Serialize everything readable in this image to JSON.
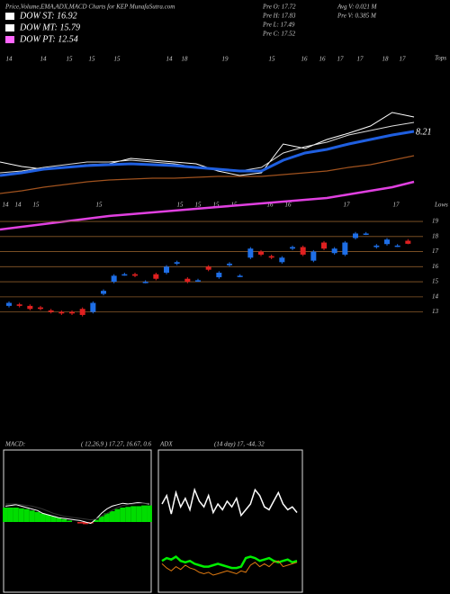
{
  "header": {
    "title": "Price,Volume,EMA,ADX,MACD Charts for KEP MunafaSutra.com",
    "legend": [
      {
        "label": "DOW ST: 16.92",
        "color": "#ffffff"
      },
      {
        "label": "DOW MT: 15.79",
        "color": "#ffffff"
      },
      {
        "label": "DOW PT: 12.54",
        "color": "#ff66ff"
      }
    ],
    "info": [
      "Pre   O: 17.72",
      "Pre   H: 17.83",
      "Pre   L: 17.49",
      "Pre   C: 17.52"
    ],
    "info2": [
      "Avg V: 0.021 M",
      "Pre   V: 0.385 M"
    ]
  },
  "dates": {
    "top": [
      "14",
      "14",
      "15",
      "15",
      "15",
      "14",
      "18",
      "19",
      "15",
      "16",
      "16",
      "17",
      "17",
      "18",
      "17"
    ],
    "middle": [
      "14",
      "14",
      "15",
      "15",
      "15",
      "15",
      "15",
      "15",
      "16",
      "16",
      "17",
      "17"
    ]
  },
  "labels": {
    "tops": "Tops",
    "lows": "Lows"
  },
  "chart_data": [
    {
      "type": "line",
      "ylim": [
        0,
        100
      ],
      "annotation": "8.21",
      "series": [
        {
          "color": "#ffffff",
          "values": [
            40,
            37.5,
            36,
            37,
            38.5,
            39,
            42,
            41,
            40,
            39,
            35,
            32.5,
            34,
            50,
            47.5,
            52.5,
            56,
            60,
            67.5,
            65
          ]
        },
        {
          "color": "#dddddd",
          "values": [
            34,
            35,
            37,
            38.5,
            40,
            40,
            41,
            40,
            39,
            37,
            36,
            35,
            37,
            45,
            48.5,
            51,
            55,
            57.5,
            60,
            62
          ]
        },
        {
          "color": "#1f5fe0",
          "values": [
            32.5,
            34,
            36,
            37,
            38,
            38.5,
            39,
            38.5,
            38,
            37,
            36,
            35,
            35,
            41,
            45,
            47,
            50,
            52.5,
            55,
            57
          ]
        },
        {
          "color": "#a0521e",
          "values": [
            22.5,
            24,
            26,
            27.5,
            29,
            30,
            30.5,
            31,
            31,
            31.5,
            32,
            32,
            32,
            33,
            34,
            35,
            37,
            38.5,
            41,
            43.5
          ]
        },
        {
          "color": "#e040e0",
          "values": [
            2.5,
            4,
            5.5,
            7,
            8.5,
            10,
            11,
            12,
            13,
            14,
            15,
            16,
            17,
            18,
            19,
            20,
            22,
            24,
            26,
            29
          ]
        }
      ]
    },
    {
      "type": "candlestick",
      "ylim": [
        12.2,
        19.6
      ],
      "yticks": [
        13,
        14,
        15,
        16,
        17,
        18,
        19
      ],
      "grid_color": "#8a5a2a",
      "up_color": "#1e6ee6",
      "down_color": "#e02020",
      "open": [
        13.4,
        13.5,
        13.4,
        13.3,
        13.1,
        13.0,
        13.0,
        13.2,
        13.0,
        14.2,
        15.0,
        15.5,
        15.5,
        15.0,
        15.5,
        15.6,
        16.2,
        15.2,
        15.1,
        16.0,
        15.3,
        16.1,
        15.4,
        16.6,
        17.0,
        16.7,
        16.3,
        17.2,
        17.3,
        16.4,
        17.6,
        16.9,
        16.8,
        17.9,
        18.2,
        17.3,
        17.5,
        17.4,
        17.72
      ],
      "high": [
        13.7,
        13.6,
        13.5,
        13.4,
        13.2,
        13.1,
        13.1,
        13.3,
        13.7,
        14.5,
        15.5,
        15.6,
        15.6,
        15.1,
        15.6,
        16.1,
        16.4,
        15.3,
        15.2,
        16.1,
        15.7,
        16.3,
        15.5,
        17.3,
        17.1,
        16.8,
        16.7,
        17.4,
        17.4,
        17.1,
        17.7,
        17.3,
        17.7,
        18.3,
        18.3,
        17.5,
        17.9,
        17.5,
        17.83
      ],
      "low": [
        13.3,
        13.3,
        13.1,
        13.1,
        12.9,
        12.8,
        12.8,
        12.7,
        12.9,
        14.1,
        14.9,
        15.4,
        15.3,
        14.9,
        15.1,
        15.5,
        16.1,
        14.9,
        15.0,
        15.7,
        15.2,
        16.0,
        15.3,
        16.5,
        16.7,
        16.5,
        16.2,
        17.1,
        16.7,
        16.3,
        17.1,
        16.8,
        16.7,
        17.8,
        18.1,
        17.2,
        17.4,
        17.3,
        17.49
      ],
      "close": [
        13.6,
        13.4,
        13.2,
        13.2,
        13.0,
        12.9,
        12.9,
        12.8,
        13.6,
        14.4,
        15.4,
        15.5,
        15.4,
        15.0,
        15.2,
        16.0,
        16.3,
        15.0,
        15.1,
        15.8,
        15.6,
        16.2,
        15.4,
        17.2,
        16.8,
        16.6,
        16.6,
        17.3,
        16.8,
        17.0,
        17.2,
        17.2,
        17.6,
        18.2,
        18.2,
        17.4,
        17.8,
        17.4,
        17.52
      ]
    },
    {
      "type": "macd",
      "title": "MACD:",
      "subtitle": "( 12,26,9 ) 17.27, 16.67, 0.6",
      "ylim": [
        -10,
        10
      ],
      "histogram": {
        "color": "#00dd00",
        "negative_color": "#dd2222",
        "values": [
          2,
          2,
          2,
          1.9,
          1.8,
          1.6,
          1.4,
          1.2,
          1,
          0.8,
          0.6,
          0.4,
          0.2,
          0,
          -0.2,
          -0.3,
          -0.2,
          0.3,
          0.8,
          1.2,
          1.5,
          1.8,
          2,
          2.1,
          2.2,
          2.2,
          2.3,
          2.3
        ]
      },
      "series": [
        {
          "color": "#ffffff",
          "values": [
            2.2,
            2.3,
            2.4,
            2.2,
            2,
            1.8,
            1.6,
            1.2,
            1,
            0.8,
            0.6,
            0.5,
            0.4,
            0.3,
            0.2,
            0,
            -0.2,
            0.4,
            1.2,
            1.8,
            2.2,
            2.4,
            2.6,
            2.5,
            2.6,
            2.7,
            2.6,
            2.5
          ]
        },
        {
          "color": "#333333",
          "values": [
            2.5,
            2.5,
            2.5,
            2.4,
            2.3,
            2.2,
            2,
            1.8,
            1.5,
            1.2,
            1,
            0.8,
            0.7,
            0.6,
            0.5,
            0.4,
            0.3,
            0.4,
            0.8,
            1.2,
            1.6,
            2,
            2.3,
            2.4,
            2.5,
            2.6,
            2.6,
            2.6
          ]
        }
      ]
    },
    {
      "type": "adx",
      "title": "ADX",
      "subtitle": "(14  day) 17,  -44,  32",
      "ylim": [
        0,
        100
      ],
      "series": [
        {
          "color": "#ffffff",
          "values": [
            62,
            68,
            55,
            70,
            60,
            66,
            58,
            72,
            64,
            60,
            68,
            56,
            62,
            58,
            64,
            60,
            66,
            54,
            58,
            62,
            72,
            68,
            60,
            58,
            64,
            70,
            62,
            58,
            60,
            56
          ]
        },
        {
          "color": "#00ee00",
          "values": [
            22,
            24,
            23,
            25,
            22,
            21,
            22,
            20,
            19,
            18,
            18,
            19,
            20,
            19,
            18,
            17,
            17,
            18,
            24,
            25,
            24,
            22,
            23,
            24,
            22,
            21,
            22,
            23,
            21,
            22
          ]
        },
        {
          "color": "#e07a10",
          "values": [
            20,
            17,
            15,
            18,
            16,
            19,
            17,
            16,
            14,
            13,
            14,
            12,
            13,
            14,
            15,
            14,
            13,
            15,
            14,
            19,
            21,
            18,
            20,
            18,
            21,
            22,
            18,
            19,
            20,
            21
          ]
        }
      ]
    }
  ]
}
